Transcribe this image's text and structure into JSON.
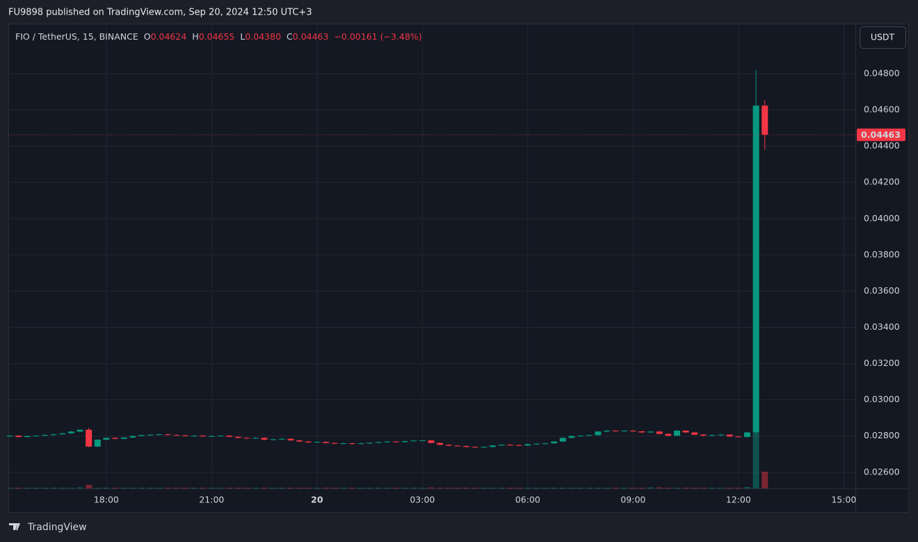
{
  "header": "FU9898 published on TradingView.com, Sep 20, 2024 12:50 UTC+3",
  "brand": "TradingView",
  "currency_button": "USDT",
  "chart_data": {
    "type": "candlestick",
    "legend": {
      "symbol": "FIO / TetherUS, 15, BINANCE",
      "fields": [
        {
          "key": "O",
          "value": "0.04624"
        },
        {
          "key": "H",
          "value": "0.04655"
        },
        {
          "key": "L",
          "value": "0.04380"
        },
        {
          "key": "C",
          "value": "0.04463"
        }
      ],
      "change": "−0.00161 (−3.48%)"
    },
    "up_color": "#089981",
    "down_color": "#f23645",
    "grid": true,
    "x": [
      15.25,
      15.5,
      15.75,
      16,
      16.25,
      16.5,
      16.75,
      17,
      17.25,
      17.5,
      17.75,
      18,
      18.25,
      18.5,
      18.75,
      19,
      19.25,
      19.5,
      19.75,
      20,
      20.25,
      20.5,
      20.75,
      21,
      21.25,
      21.5,
      21.75,
      22,
      22.25,
      22.5,
      22.75,
      23,
      23.25,
      23.5,
      23.75,
      24,
      24.25,
      24.5,
      24.75,
      25,
      25.25,
      25.5,
      25.75,
      26,
      26.25,
      26.5,
      26.75,
      27,
      27.25,
      27.5,
      27.75,
      28,
      28.25,
      28.5,
      28.75,
      29,
      29.25,
      29.5,
      29.75,
      30,
      30.25,
      30.5,
      30.75,
      31,
      31.25,
      31.5,
      31.75,
      32,
      32.25,
      32.5,
      32.75,
      33,
      33.25,
      33.5,
      33.75,
      34,
      34.25,
      34.5,
      34.75,
      35,
      35.25,
      35.5,
      35.75,
      36,
      36.25,
      36.5,
      36.75
    ],
    "ohlc": [
      [
        0.02798,
        0.02805,
        0.02795,
        0.02802
      ],
      [
        0.02802,
        0.02805,
        0.02792,
        0.02795
      ],
      [
        0.02795,
        0.02803,
        0.02792,
        0.028
      ],
      [
        0.028,
        0.02805,
        0.02797,
        0.02802
      ],
      [
        0.02802,
        0.02809,
        0.02799,
        0.02806
      ],
      [
        0.02806,
        0.02813,
        0.02803,
        0.0281
      ],
      [
        0.0281,
        0.02818,
        0.02807,
        0.02815
      ],
      [
        0.02815,
        0.02828,
        0.02812,
        0.02825
      ],
      [
        0.02825,
        0.02838,
        0.02822,
        0.02835
      ],
      [
        0.02835,
        0.02845,
        0.02738,
        0.02742
      ],
      [
        0.02742,
        0.02783,
        0.02739,
        0.0278
      ],
      [
        0.0278,
        0.02793,
        0.02777,
        0.0279
      ],
      [
        0.0279,
        0.02793,
        0.02782,
        0.02785
      ],
      [
        0.02785,
        0.02795,
        0.02782,
        0.02792
      ],
      [
        0.02792,
        0.02803,
        0.02789,
        0.028
      ],
      [
        0.028,
        0.02808,
        0.02797,
        0.02805
      ],
      [
        0.02805,
        0.02811,
        0.02802,
        0.02808
      ],
      [
        0.02808,
        0.02813,
        0.02805,
        0.0281
      ],
      [
        0.0281,
        0.02813,
        0.02803,
        0.02806
      ],
      [
        0.02806,
        0.02809,
        0.02801,
        0.02804
      ],
      [
        0.02804,
        0.02807,
        0.02797,
        0.028
      ],
      [
        0.028,
        0.02805,
        0.02797,
        0.02802
      ],
      [
        0.02802,
        0.02805,
        0.02795,
        0.02798
      ],
      [
        0.02798,
        0.02803,
        0.02795,
        0.028
      ],
      [
        0.028,
        0.02805,
        0.02797,
        0.02802
      ],
      [
        0.02802,
        0.02805,
        0.02793,
        0.02796
      ],
      [
        0.02796,
        0.02799,
        0.02787,
        0.0279
      ],
      [
        0.0279,
        0.02793,
        0.02784,
        0.02787
      ],
      [
        0.02787,
        0.02793,
        0.02784,
        0.0279
      ],
      [
        0.0279,
        0.02793,
        0.02777,
        0.0278
      ],
      [
        0.0278,
        0.02785,
        0.02777,
        0.02782
      ],
      [
        0.02782,
        0.02788,
        0.02779,
        0.02785
      ],
      [
        0.02785,
        0.02788,
        0.02773,
        0.02776
      ],
      [
        0.02776,
        0.02779,
        0.02767,
        0.0277
      ],
      [
        0.0277,
        0.02773,
        0.02762,
        0.02765
      ],
      [
        0.02765,
        0.02771,
        0.02762,
        0.02768
      ],
      [
        0.02768,
        0.02771,
        0.02759,
        0.02762
      ],
      [
        0.02762,
        0.02765,
        0.02755,
        0.02758
      ],
      [
        0.02758,
        0.02763,
        0.02755,
        0.0276
      ],
      [
        0.0276,
        0.02763,
        0.02754,
        0.02757
      ],
      [
        0.02757,
        0.02763,
        0.02754,
        0.0276
      ],
      [
        0.0276,
        0.02766,
        0.02757,
        0.02763
      ],
      [
        0.02763,
        0.0277,
        0.0276,
        0.02767
      ],
      [
        0.02767,
        0.02773,
        0.02764,
        0.0277
      ],
      [
        0.0277,
        0.02773,
        0.02764,
        0.02767
      ],
      [
        0.02767,
        0.02775,
        0.02764,
        0.02772
      ],
      [
        0.02772,
        0.02778,
        0.02769,
        0.02775
      ],
      [
        0.02775,
        0.02779,
        0.02772,
        0.02776
      ],
      [
        0.02776,
        0.02779,
        0.02759,
        0.02762
      ],
      [
        0.02762,
        0.02765,
        0.02749,
        0.02752
      ],
      [
        0.02752,
        0.02755,
        0.02744,
        0.02747
      ],
      [
        0.02747,
        0.0275,
        0.02742,
        0.02745
      ],
      [
        0.02745,
        0.02748,
        0.02737,
        0.0274
      ],
      [
        0.0274,
        0.02743,
        0.02735,
        0.02738
      ],
      [
        0.02738,
        0.02743,
        0.02735,
        0.0274
      ],
      [
        0.0274,
        0.02751,
        0.02737,
        0.02748
      ],
      [
        0.02748,
        0.02755,
        0.02745,
        0.02752
      ],
      [
        0.02752,
        0.02755,
        0.02747,
        0.0275
      ],
      [
        0.0275,
        0.02753,
        0.02745,
        0.02748
      ],
      [
        0.02748,
        0.02758,
        0.02745,
        0.02755
      ],
      [
        0.02755,
        0.02761,
        0.02752,
        0.02758
      ],
      [
        0.02758,
        0.02763,
        0.02755,
        0.0276
      ],
      [
        0.0276,
        0.02773,
        0.02757,
        0.0277
      ],
      [
        0.0277,
        0.02793,
        0.02767,
        0.0279
      ],
      [
        0.0279,
        0.02803,
        0.02787,
        0.028
      ],
      [
        0.028,
        0.02805,
        0.02797,
        0.02802
      ],
      [
        0.02802,
        0.02808,
        0.02799,
        0.02805
      ],
      [
        0.02805,
        0.02828,
        0.02802,
        0.02825
      ],
      [
        0.02825,
        0.02833,
        0.02822,
        0.0283
      ],
      [
        0.0283,
        0.02833,
        0.02825,
        0.02828
      ],
      [
        0.02828,
        0.02833,
        0.02825,
        0.0283
      ],
      [
        0.0283,
        0.02833,
        0.02823,
        0.02826
      ],
      [
        0.02826,
        0.02829,
        0.02817,
        0.0282
      ],
      [
        0.0282,
        0.02828,
        0.02817,
        0.02825
      ],
      [
        0.02825,
        0.02828,
        0.02809,
        0.02812
      ],
      [
        0.02812,
        0.02815,
        0.02799,
        0.02802
      ],
      [
        0.02802,
        0.02833,
        0.02799,
        0.0283
      ],
      [
        0.0283,
        0.02833,
        0.02817,
        0.0282
      ],
      [
        0.0282,
        0.02823,
        0.02805,
        0.02808
      ],
      [
        0.02808,
        0.02811,
        0.02799,
        0.02802
      ],
      [
        0.02802,
        0.02808,
        0.02799,
        0.02805
      ],
      [
        0.02805,
        0.02811,
        0.02802,
        0.02808
      ],
      [
        0.02808,
        0.02811,
        0.02795,
        0.02798
      ],
      [
        0.02798,
        0.02801,
        0.02792,
        0.02795
      ],
      [
        0.02795,
        0.02823,
        0.02792,
        0.0282
      ],
      [
        0.0282,
        0.0482,
        0.0281,
        0.04624
      ],
      [
        0.04624,
        0.04655,
        0.0438,
        0.04463
      ]
    ],
    "volume": [
      2,
      2,
      2,
      2,
      2,
      2,
      2,
      2,
      3,
      10,
      2,
      2,
      2,
      2,
      2,
      2,
      2,
      2,
      2,
      2,
      2,
      2,
      2,
      2,
      2,
      2,
      2,
      2,
      2,
      2,
      2,
      2,
      2,
      2,
      2,
      2,
      2,
      2,
      2,
      2,
      2,
      2,
      2,
      2,
      2,
      2,
      2,
      2,
      3,
      2,
      2,
      2,
      2,
      2,
      2,
      2,
      2,
      2,
      2,
      2,
      2,
      2,
      2,
      2,
      2,
      2,
      2,
      2,
      2,
      2,
      2,
      2,
      2,
      3,
      3,
      2,
      2,
      2,
      2,
      2,
      2,
      2,
      2,
      2,
      4,
      160,
      48
    ],
    "xlim": [
      15.21,
      39.33
    ],
    "xticks": [
      {
        "value": 18,
        "label": "18:00"
      },
      {
        "value": 21,
        "label": "21:00"
      },
      {
        "value": 24,
        "label": "20"
      },
      {
        "value": 27,
        "label": "03:00"
      },
      {
        "value": 30,
        "label": "06:00"
      },
      {
        "value": 33,
        "label": "09:00"
      },
      {
        "value": 36,
        "label": "12:00"
      },
      {
        "value": 39,
        "label": "15:00"
      }
    ],
    "ylim": [
      0.02511,
      0.04938
    ],
    "yticks": [
      {
        "value": 0.026,
        "label": "0.02600"
      },
      {
        "value": 0.028,
        "label": "0.02800"
      },
      {
        "value": 0.03,
        "label": "0.03000"
      },
      {
        "value": 0.032,
        "label": "0.03200"
      },
      {
        "value": 0.034,
        "label": "0.03400"
      },
      {
        "value": 0.036,
        "label": "0.03600"
      },
      {
        "value": 0.038,
        "label": "0.03800"
      },
      {
        "value": 0.04,
        "label": "0.04000"
      },
      {
        "value": 0.042,
        "label": "0.04200"
      },
      {
        "value": 0.044,
        "label": "0.04400"
      },
      {
        "value": 0.046,
        "label": "0.04600"
      },
      {
        "value": 0.048,
        "label": "0.04800"
      }
    ]
  }
}
